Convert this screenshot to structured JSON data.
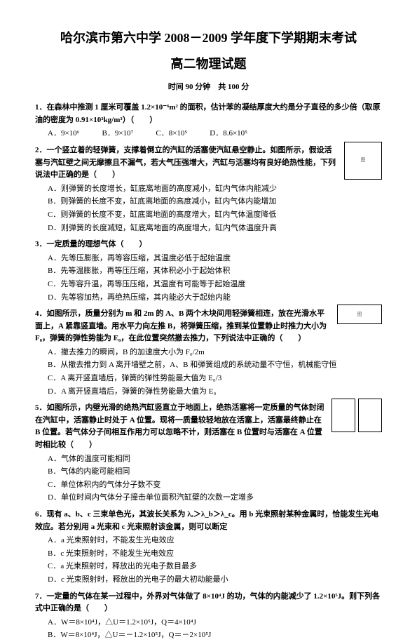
{
  "title_main": "哈尔滨市第六中学 2008－2009 学年度下学期期末考试",
  "title_sub": "高二物理试题",
  "meta": "时间 90 分钟　共 100 分",
  "q1": {
    "stem": "1．在森林中推测 1 厘米可覆盖 1.2×10⁻⁶m² 的面积，估计苯的凝结厚度大约是分子直径的多少倍（取原油的密度为 0.91×10³kg/m³）（　　）",
    "a": "A．9×10⁶",
    "b": "B．9×10⁷",
    "c": "C．8×10⁵",
    "d": "D．8.6×10⁵"
  },
  "q2": {
    "stem": "2．一个竖立着的轻弹簧，支撑着倒立的汽缸的活塞使汽缸悬空静止。如图所示，假设活塞与汽缸壁之间无摩擦且不漏气，若大气压强增大，汽缸与活塞均有良好绝热性能，下列说法中正确的是（　　）",
    "a": "A．则弹簧的长度增长，缸底离地面的高度减小，缸内气体内能减少",
    "b": "B．则弹簧的长度不变，缸底离地面的高度减小，缸内气体内能增加",
    "c": "C．则弹簧的长度不变，缸底离地面的高度增大，缸内气体温度降低",
    "d": "D．则弹簧的长度减短，缸底离地面的高度增大，缸内气体温度升高"
  },
  "q3": {
    "stem": "3．一定质量的理想气体（　　）",
    "a": "A．先等压膨胀，再等容压缩，其温度必低于起始温度",
    "b": "B．先等温膨胀，再等压压缩，其体积必小于起始体积",
    "c": "C．先等容升温，再等压压缩，其温度有可能等于起始温度",
    "d": "D．先等容加热，再绝热压缩，其内能必大于起始内能"
  },
  "q4": {
    "stem": "4．如图所示，质量分别为 m 和 2m 的 A、B 两个木块间用轻弹簧相连，放在光滑水平面上，A 紧靠竖直墙。用水平力向左推 B，将弹簧压缩，推到某位置静止时推力大小为 F₀，弹簧的弹性势能为 E₀，在此位置突然撤去推力，下列说法中正确的（　　）",
    "a": "A．撤去推力的瞬间，B 的加速度大小为 F₀/2m",
    "b": "B．从撤去推力到 A 离开墙壁之前，A、B 和弹簧组成的系统动量不守恒，机械能守恒",
    "c": "C．A 离开竖直墙后，弹簧的弹性势能最大值为 E₀/3",
    "d": "D．A 离开竖直墙后，弹簧的弹性势能最大值为 E₀"
  },
  "q5": {
    "stem": "5．如图所示，内壁光滑的绝热汽缸竖直立于地面上，绝热活塞将一定质量的气体封闭在汽缸中，活塞静止时处于 A 位置。现将一质量较轻地放在活塞上，活塞最终静止在 B 位置。若气体分子间相互作用力可以忽略不计，则活塞在 B 位置时与活塞在 A 位置时相比较（　　）",
    "a": "A．气体的温度可能相同",
    "b": "B．气体的内能可能相同",
    "c": "C．单位体积内的气体分子数不变",
    "d": "D．单位时间内气体分子撞击单位面积汽缸壁的次数一定增多"
  },
  "q6": {
    "stem": "6．现有 a、b、c 三束单色光，其波长关系为 λₐ＞λ_b＞λ_c。用 b 光束照射某种金属时，恰能发生光电效应。若分别用 a 光束和 c 光束照射该金属，则可以断定",
    "a": "A．a 光束照射时，不能发生光电效应",
    "b": "B．c 光束照射时，不能发生光电效应",
    "c": "C．a 光束照射时，释放出的光电子数目最多",
    "d": "D．c 光束照射时，释放出的光电子的最大初动能最小"
  },
  "q7": {
    "stem": "7．一定量的气体在某一过程中，外界对气体做了 8×10⁴J 的功，气体的内能减少了 1.2×10⁵J。则下列各式中正确的是（　　）",
    "a": "A．W＝8×10⁴J，△U＝1.2×10⁵J，Q＝4×10⁴J",
    "b": "B．W＝8×10⁴J，△U＝－1.2×10⁵J，Q＝－2×10⁵J"
  }
}
